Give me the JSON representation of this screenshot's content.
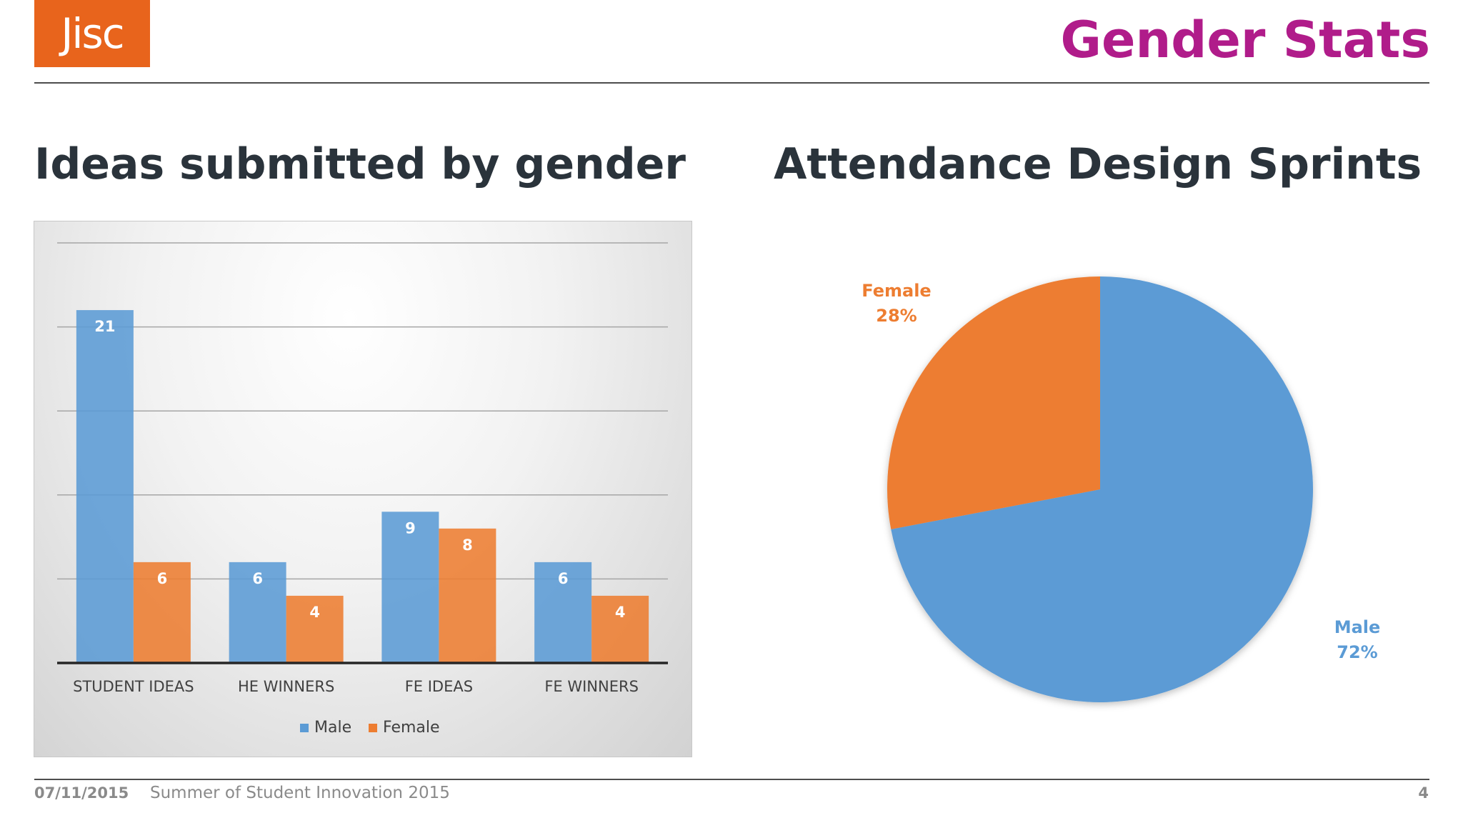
{
  "logo": {
    "text": "Jisc",
    "color": "#e8641c"
  },
  "slide_title": "Gender Stats",
  "left_title": "Ideas submitted by gender",
  "right_title": "Attendance Design Sprints",
  "footer": {
    "date": "07/11/2015",
    "event": "Summer of Student Innovation 2015",
    "page": "4"
  },
  "colors": {
    "male": "#5b9bd5",
    "female": "#ed7d31",
    "title_accent": "#b01c8a",
    "heading": "#2a333b"
  },
  "chart_data": [
    {
      "type": "bar",
      "title": "Ideas submitted by gender",
      "categories": [
        "STUDENT IDEAS",
        "HE WINNERS",
        "FE IDEAS",
        "FE WINNERS"
      ],
      "series": [
        {
          "name": "Male",
          "values": [
            21,
            6,
            9,
            6
          ],
          "color": "#5b9bd5"
        },
        {
          "name": "Female",
          "values": [
            6,
            4,
            8,
            4
          ],
          "color": "#ed7d31"
        }
      ],
      "ylim": [
        0,
        25
      ],
      "ytick_step": 5,
      "ytick_labels_shown": false,
      "grid": true,
      "data_labels": true,
      "legend": "bottom"
    },
    {
      "type": "pie",
      "title": "Attendance Design Sprints",
      "slices": [
        {
          "name": "Male",
          "value": 72,
          "label": "72%",
          "color": "#5b9bd5"
        },
        {
          "name": "Female",
          "value": 28,
          "label": "28%",
          "color": "#ed7d31"
        }
      ],
      "legend": "none",
      "data_labels": true
    }
  ]
}
